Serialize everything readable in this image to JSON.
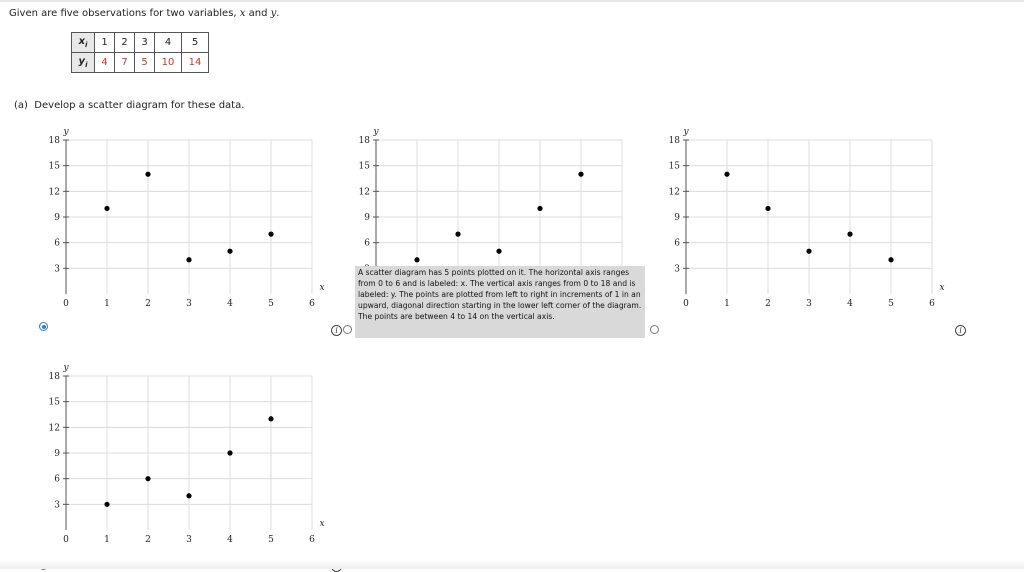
{
  "question": {
    "prefix": "Given are five observations for two variables, ",
    "x": "x",
    "and": " and ",
    "y": "y",
    "suffix": "."
  },
  "table": {
    "x_label": "x",
    "x_sub": "i",
    "y_label": "y",
    "y_sub": "i",
    "x_values": [
      "1",
      "2",
      "3",
      "4",
      "5"
    ],
    "y_values": [
      "4",
      "7",
      "5",
      "10",
      "14"
    ]
  },
  "part_a": {
    "label": "(a)",
    "text": "Develop a scatter diagram for these data."
  },
  "tooltip": "A scatter diagram has 5 points plotted on it. The horizontal axis ranges from 0 to 6 and is labeled: x. The vertical axis ranges from 0 to 18 and is labeled: y. The points are plotted from left to right in increments of 1 in an upward, diagonal direction starting in the lower left corner of the diagram. The points are between 4 to 14 on the vertical axis.",
  "info_glyph": "i",
  "chart_data": [
    {
      "type": "scatter",
      "xlabel": "x",
      "ylabel": "y",
      "xlim": [
        0,
        6
      ],
      "ylim": [
        0,
        18
      ],
      "x_ticks": [
        0,
        1,
        2,
        3,
        4,
        5,
        6
      ],
      "y_ticks": [
        3,
        6,
        9,
        12,
        15,
        18
      ],
      "points": [
        [
          1,
          10
        ],
        [
          2,
          14
        ],
        [
          3,
          4
        ],
        [
          4,
          5
        ],
        [
          5,
          7
        ]
      ],
      "selected": true
    },
    {
      "type": "scatter",
      "xlabel": "x",
      "ylabel": "y",
      "xlim": [
        0,
        6
      ],
      "ylim": [
        0,
        18
      ],
      "x_ticks": [
        0,
        1,
        2,
        3,
        4,
        5,
        6
      ],
      "y_ticks": [
        3,
        6,
        9,
        12,
        15,
        18
      ],
      "points": [
        [
          1,
          4
        ],
        [
          2,
          7
        ],
        [
          3,
          5
        ],
        [
          4,
          10
        ],
        [
          5,
          14
        ]
      ],
      "selected": false
    },
    {
      "type": "scatter",
      "xlabel": "x",
      "ylabel": "y",
      "xlim": [
        0,
        6
      ],
      "ylim": [
        0,
        18
      ],
      "x_ticks": [
        0,
        1,
        2,
        3,
        4,
        5,
        6
      ],
      "y_ticks": [
        3,
        6,
        9,
        12,
        15,
        18
      ],
      "points": [
        [
          1,
          14
        ],
        [
          2,
          10
        ],
        [
          3,
          5
        ],
        [
          4,
          7
        ],
        [
          5,
          4
        ]
      ],
      "selected": false
    },
    {
      "type": "scatter",
      "xlabel": "x",
      "ylabel": "y",
      "xlim": [
        0,
        6
      ],
      "ylim": [
        0,
        18
      ],
      "x_ticks": [
        0,
        1,
        2,
        3,
        4,
        5,
        6
      ],
      "y_ticks": [
        3,
        6,
        9,
        12,
        15,
        18
      ],
      "points": [
        [
          1,
          3
        ],
        [
          2,
          6
        ],
        [
          3,
          4
        ],
        [
          4,
          9
        ],
        [
          5,
          13
        ]
      ],
      "selected": false
    }
  ]
}
